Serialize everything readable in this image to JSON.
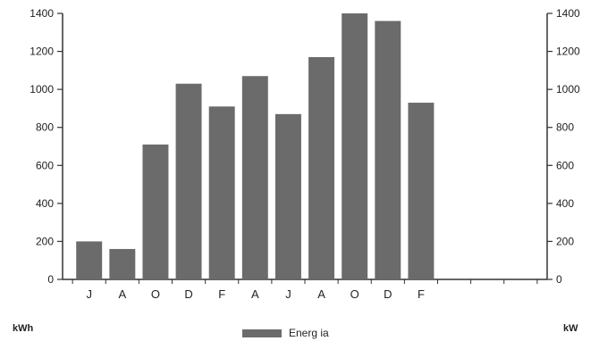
{
  "chart_data": {
    "type": "bar",
    "categories": [
      "J",
      "A",
      "O",
      "D",
      "F",
      "A",
      "J",
      "A",
      "O",
      "D",
      "F",
      "",
      "",
      ""
    ],
    "series": [
      {
        "name": "Energ ia",
        "values": [
          200,
          160,
          710,
          1030,
          910,
          1070,
          870,
          1170,
          1400,
          1360,
          930,
          null,
          null,
          null
        ]
      }
    ],
    "ylim": [
      0,
      1400
    ],
    "yticks": [
      0,
      200,
      400,
      600,
      800,
      1000,
      1200,
      1400
    ],
    "ylim_right": [
      0,
      1400
    ],
    "yticks_right": [
      0,
      200,
      400,
      600,
      800,
      1000,
      1200,
      1400
    ],
    "ylabel": "kWh",
    "ylabel_right": "kW",
    "legend_position": "bottom",
    "grid": false,
    "bar_color": "#6b6b6b"
  }
}
